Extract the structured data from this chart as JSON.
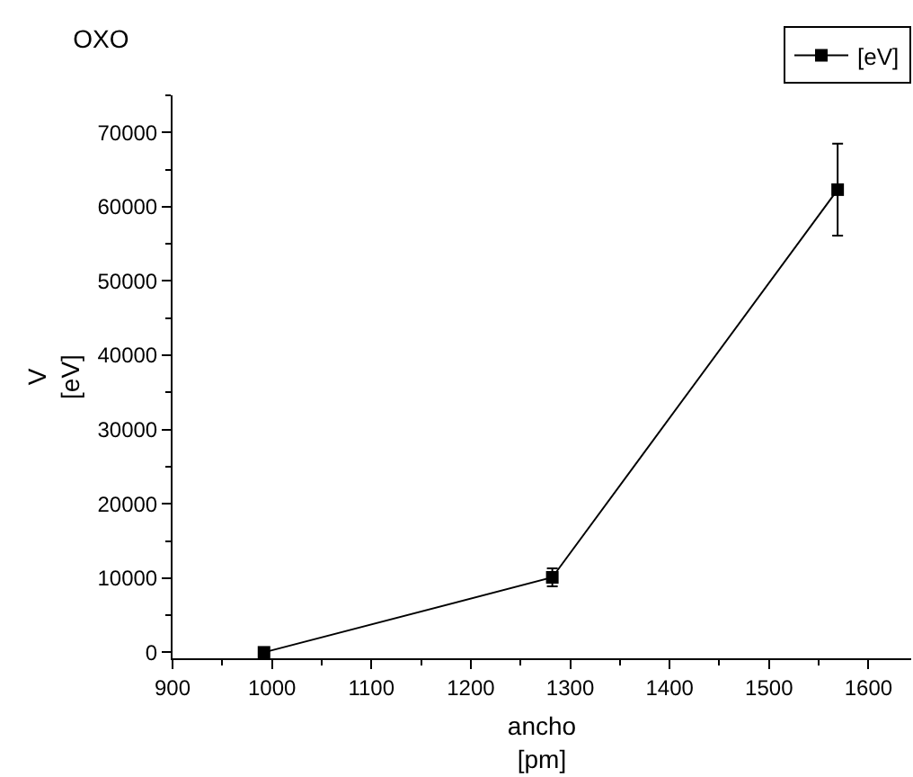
{
  "chart_data": {
    "type": "line",
    "title": "OXO",
    "xlabel": "ancho\n[pm]",
    "ylabel": "V\n[eV]",
    "x": [
      992,
      1282,
      1569
    ],
    "series": [
      {
        "name": "[eV]",
        "color": "#000000",
        "values": [
          0,
          10100,
          62300
        ],
        "errors": [
          null,
          1200,
          6200
        ]
      }
    ],
    "xlim": [
      900,
      1643
    ],
    "xticks": [
      900,
      1000,
      1100,
      1200,
      1300,
      1400,
      1500,
      1600
    ],
    "ylim": [
      -800,
      75000
    ],
    "yticks": [
      0,
      10000,
      20000,
      30000,
      40000,
      50000,
      60000,
      70000
    ],
    "grid": false,
    "legend": "top right",
    "marker": "square",
    "line_style": "solid"
  }
}
